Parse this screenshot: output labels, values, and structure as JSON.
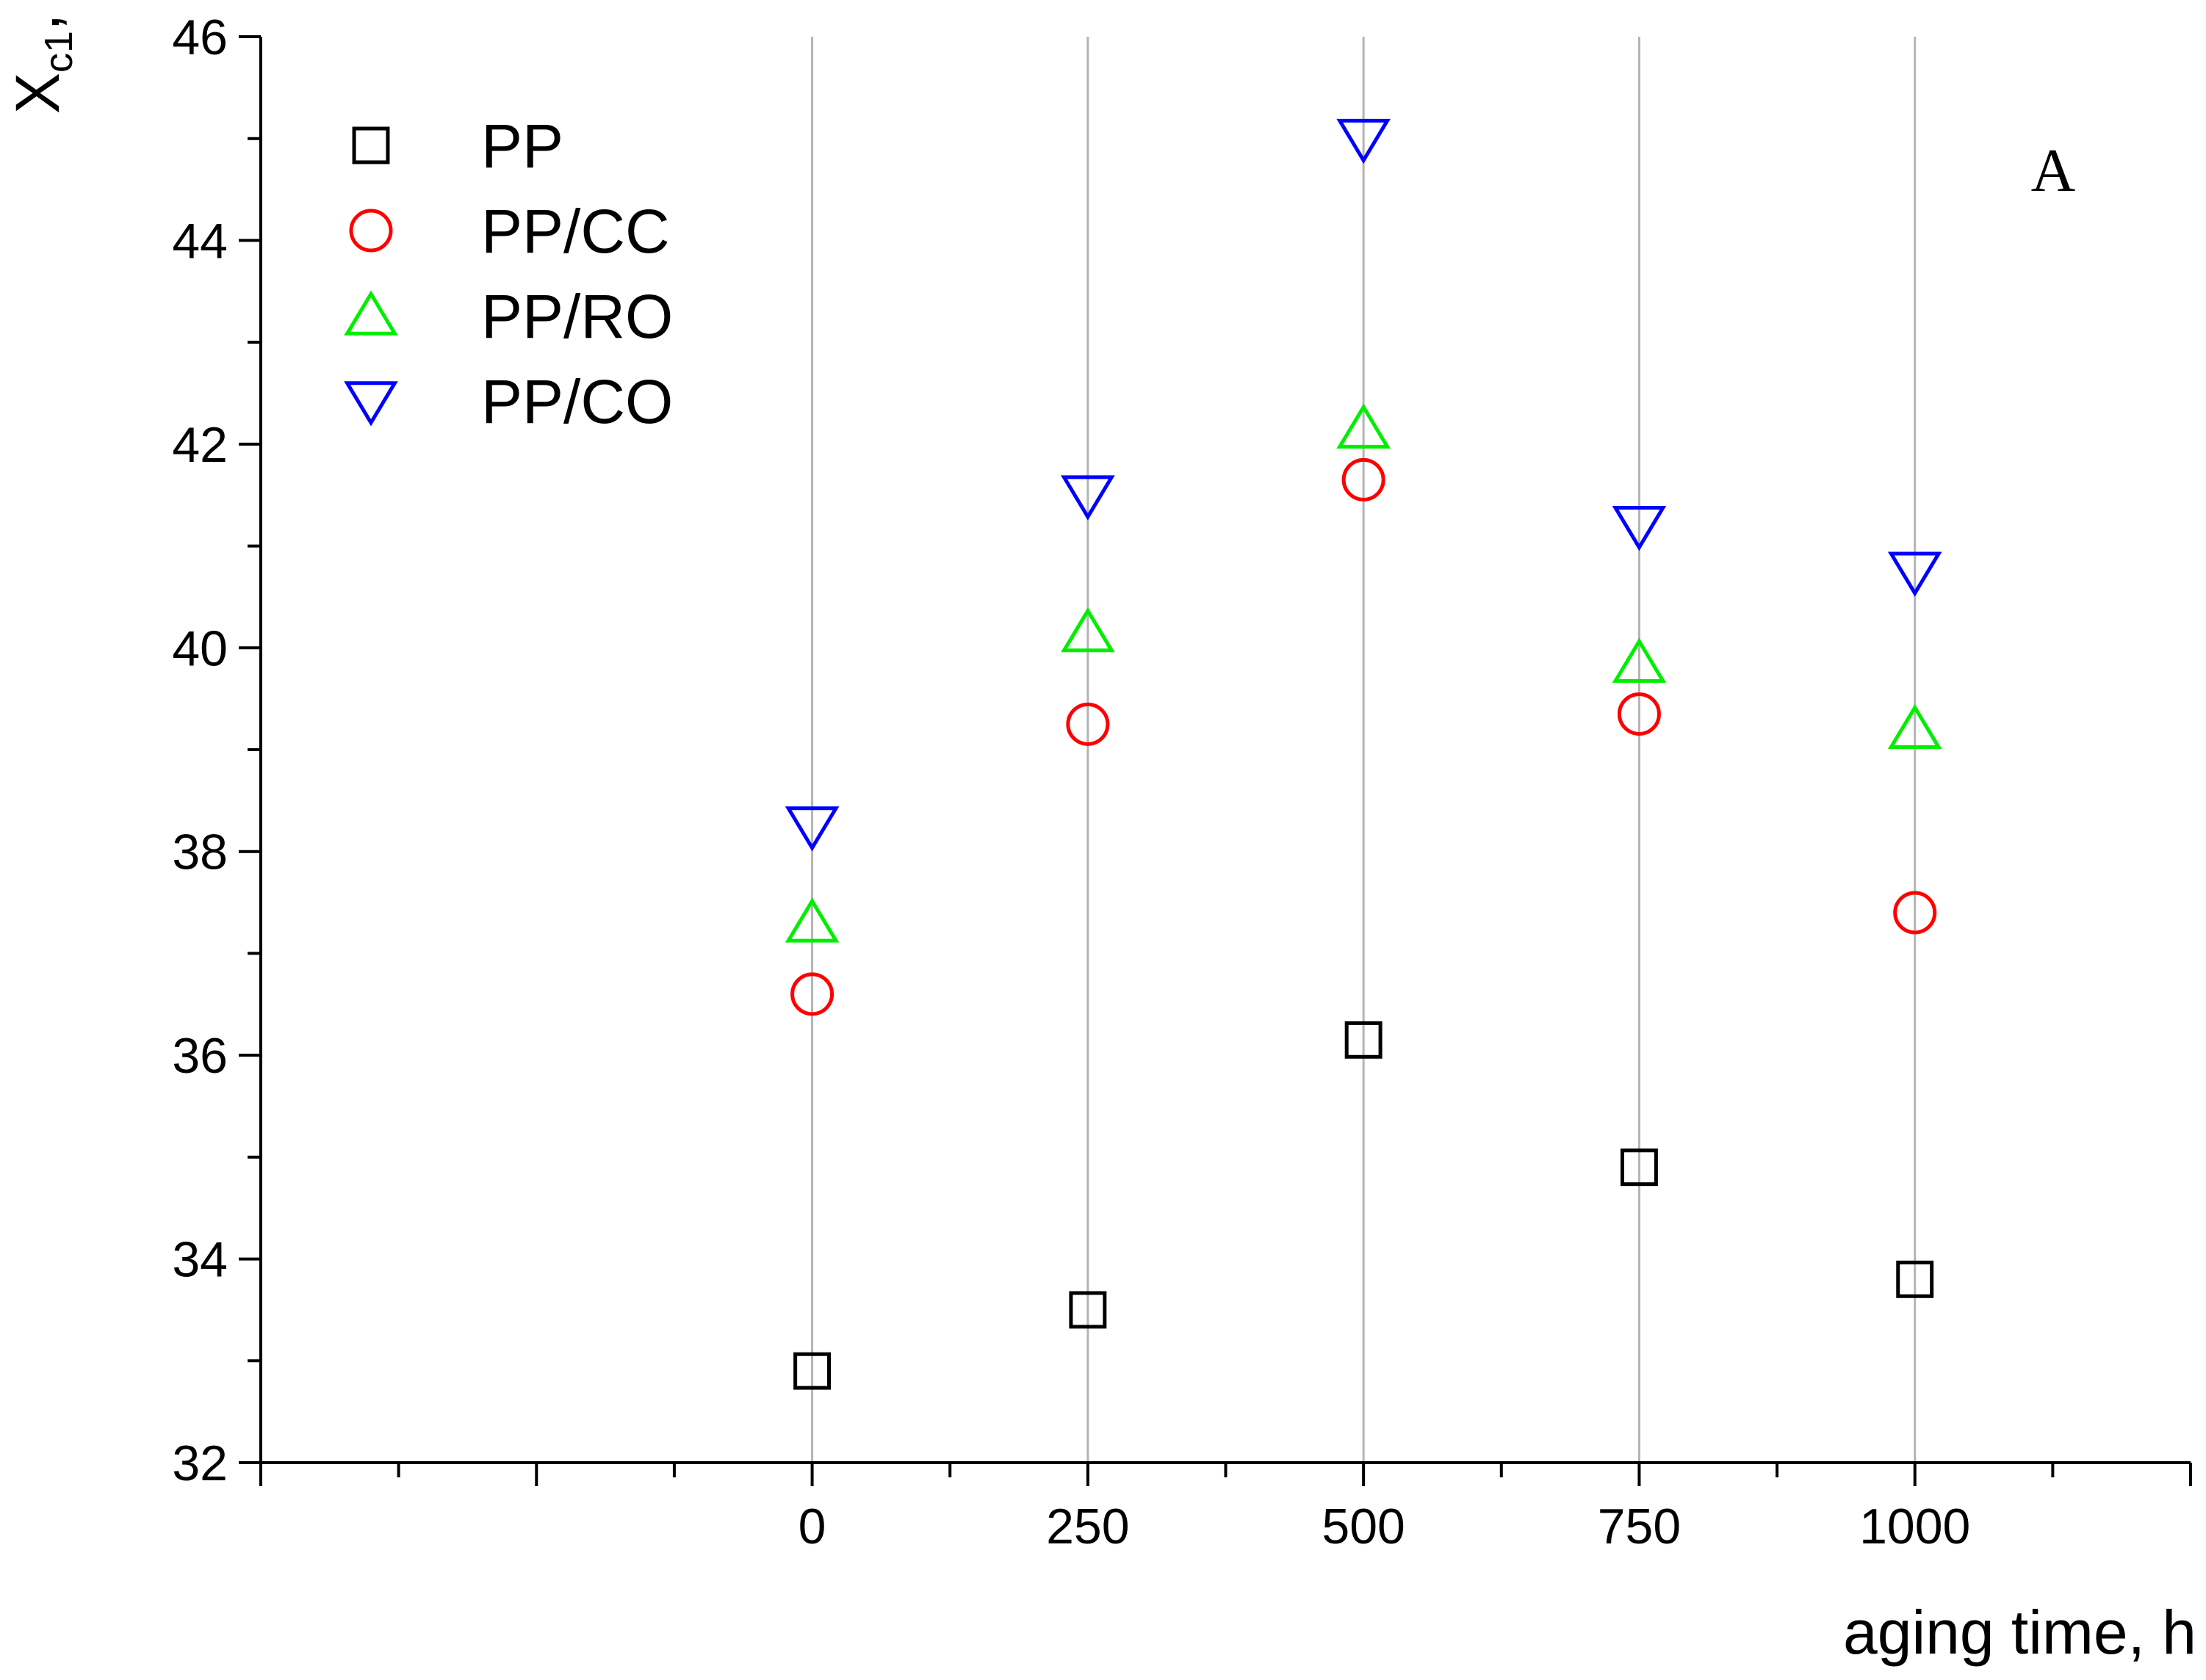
{
  "chart_data": {
    "type": "scatter",
    "title": "",
    "xlabel": "aging time, h",
    "ylabel": {
      "main": "X",
      "sub": "c1",
      "suffix": ", %"
    },
    "panel_label": "A",
    "xlim": [
      -500,
      1250
    ],
    "ylim": [
      32,
      46
    ],
    "x_ticks": [
      0,
      250,
      500,
      750,
      1000
    ],
    "y_ticks": [
      32,
      34,
      36,
      38,
      40,
      42,
      44,
      46
    ],
    "grid": "vertical lines at major x ticks",
    "legend_position": "top-left",
    "x": [
      0,
      250,
      500,
      750,
      1000
    ],
    "series": [
      {
        "name": "PP",
        "marker": "square",
        "color": "#000000",
        "values": [
          32.9,
          33.5,
          36.15,
          34.9,
          33.8
        ]
      },
      {
        "name": "PP/CC",
        "marker": "circle",
        "color": "#ff0000",
        "values": [
          36.6,
          39.25,
          41.65,
          39.35,
          37.4
        ]
      },
      {
        "name": "PP/RO",
        "marker": "triangle-up",
        "color": "#00ee00",
        "values": [
          37.3,
          40.15,
          42.15,
          39.85,
          39.2
        ]
      },
      {
        "name": "PP/CO",
        "marker": "triangle-down",
        "color": "#0000ff",
        "values": [
          38.25,
          41.5,
          45.0,
          41.2,
          40.75
        ]
      }
    ]
  }
}
